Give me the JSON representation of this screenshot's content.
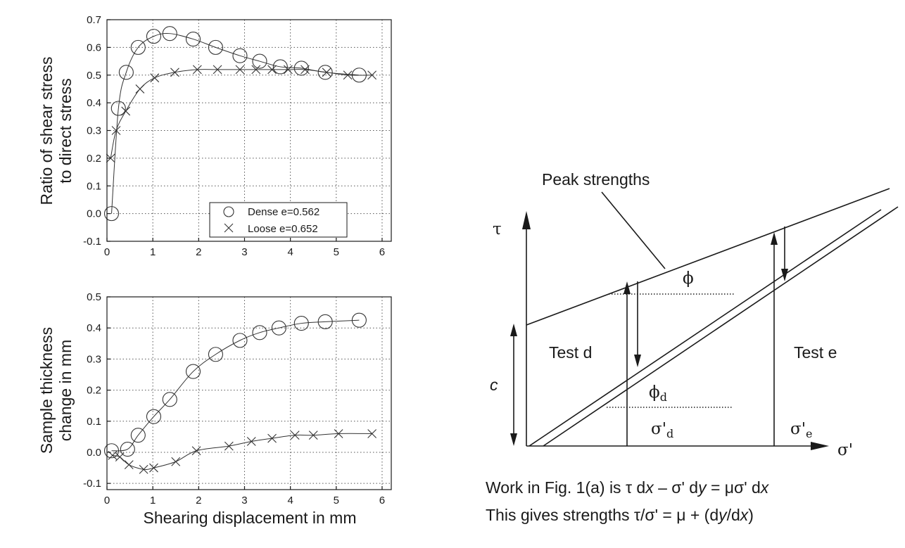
{
  "chart_data": [
    {
      "type": "scatter",
      "ylabel": [
        "Ratio of shear stress",
        "to direct stress"
      ],
      "xlabel": "",
      "xlim": [
        0,
        6.2
      ],
      "ylim": [
        -0.1,
        0.7
      ],
      "xticks": [
        "0",
        "1",
        "2",
        "3",
        "4",
        "5",
        "6"
      ],
      "yticks": [
        "-0.1",
        "0.0",
        "0.1",
        "0.2",
        "0.3",
        "0.4",
        "0.5",
        "0.6",
        "0.7"
      ],
      "grid": true,
      "legend_position": "bottom-right",
      "series": [
        {
          "name": "Dense e=0.562",
          "marker": "circle",
          "x": [
            0.1,
            0.25,
            0.42,
            0.68,
            1.02,
            1.37,
            1.88,
            2.37,
            2.9,
            3.33,
            3.78,
            4.24,
            4.76,
            5.5
          ],
          "y": [
            0.0,
            0.38,
            0.51,
            0.6,
            0.64,
            0.65,
            0.63,
            0.6,
            0.57,
            0.55,
            0.53,
            0.525,
            0.51,
            0.5
          ]
        },
        {
          "name": "Loose e=0.652",
          "marker": "x",
          "x": [
            0.08,
            0.2,
            0.41,
            0.72,
            1.04,
            1.48,
            1.97,
            2.41,
            2.9,
            3.25,
            3.6,
            3.95,
            4.32,
            4.79,
            5.25,
            5.78
          ],
          "y": [
            0.2,
            0.3,
            0.37,
            0.45,
            0.49,
            0.51,
            0.52,
            0.52,
            0.52,
            0.52,
            0.52,
            0.52,
            0.52,
            0.51,
            0.5,
            0.5
          ]
        }
      ]
    },
    {
      "type": "scatter",
      "ylabel": [
        "Sample thickness",
        "change in mm"
      ],
      "xlabel": "Shearing displacement in mm",
      "xlim": [
        0,
        6.2
      ],
      "ylim": [
        -0.12,
        0.5
      ],
      "xticks": [
        "0",
        "1",
        "2",
        "3",
        "4",
        "5",
        "6"
      ],
      "yticks": [
        "-0.1",
        "0.0",
        "0.1",
        "0.2",
        "0.3",
        "0.4",
        "0.5"
      ],
      "grid": true,
      "series": [
        {
          "name": "Dense e=0.562",
          "marker": "circle",
          "x": [
            0.1,
            0.45,
            0.68,
            1.02,
            1.37,
            1.88,
            2.37,
            2.9,
            3.33,
            3.75,
            4.24,
            4.76,
            5.5
          ],
          "y": [
            0.005,
            0.01,
            0.055,
            0.115,
            0.17,
            0.26,
            0.315,
            0.36,
            0.385,
            0.4,
            0.415,
            0.42,
            0.425
          ]
        },
        {
          "name": "Loose e=0.652",
          "marker": "x",
          "x": [
            0.12,
            0.28,
            0.48,
            0.8,
            1.02,
            1.5,
            1.95,
            2.66,
            3.15,
            3.6,
            4.1,
            4.5,
            5.05,
            5.78
          ],
          "y": [
            -0.01,
            -0.015,
            -0.04,
            -0.055,
            -0.05,
            -0.03,
            0.005,
            0.02,
            0.035,
            0.045,
            0.055,
            0.055,
            0.06,
            0.06
          ]
        }
      ]
    },
    {
      "type": "diagram",
      "title": "Peak strengths",
      "y_axis_symbol": "τ",
      "x_axis_symbol": "σ'",
      "labels": {
        "phi": "ϕ",
        "phi_d_main": "ϕ",
        "phi_d_sub": "d",
        "test_d": "Test d",
        "test_e": "Test e",
        "c": "c",
        "sigma_d_main": "σ'",
        "sigma_d_sub": "d",
        "sigma_e_main": "σ'",
        "sigma_e_sub": "e"
      },
      "caption": {
        "line1_parts": [
          "Work in Fig. 1(a) is τ d",
          "x",
          " – σ' d",
          "y",
          " = μσ' d",
          "x"
        ],
        "line2_parts": [
          "This gives strengths τ/σ' = μ + (d",
          "y",
          "/d",
          "x",
          ")"
        ]
      }
    }
  ]
}
